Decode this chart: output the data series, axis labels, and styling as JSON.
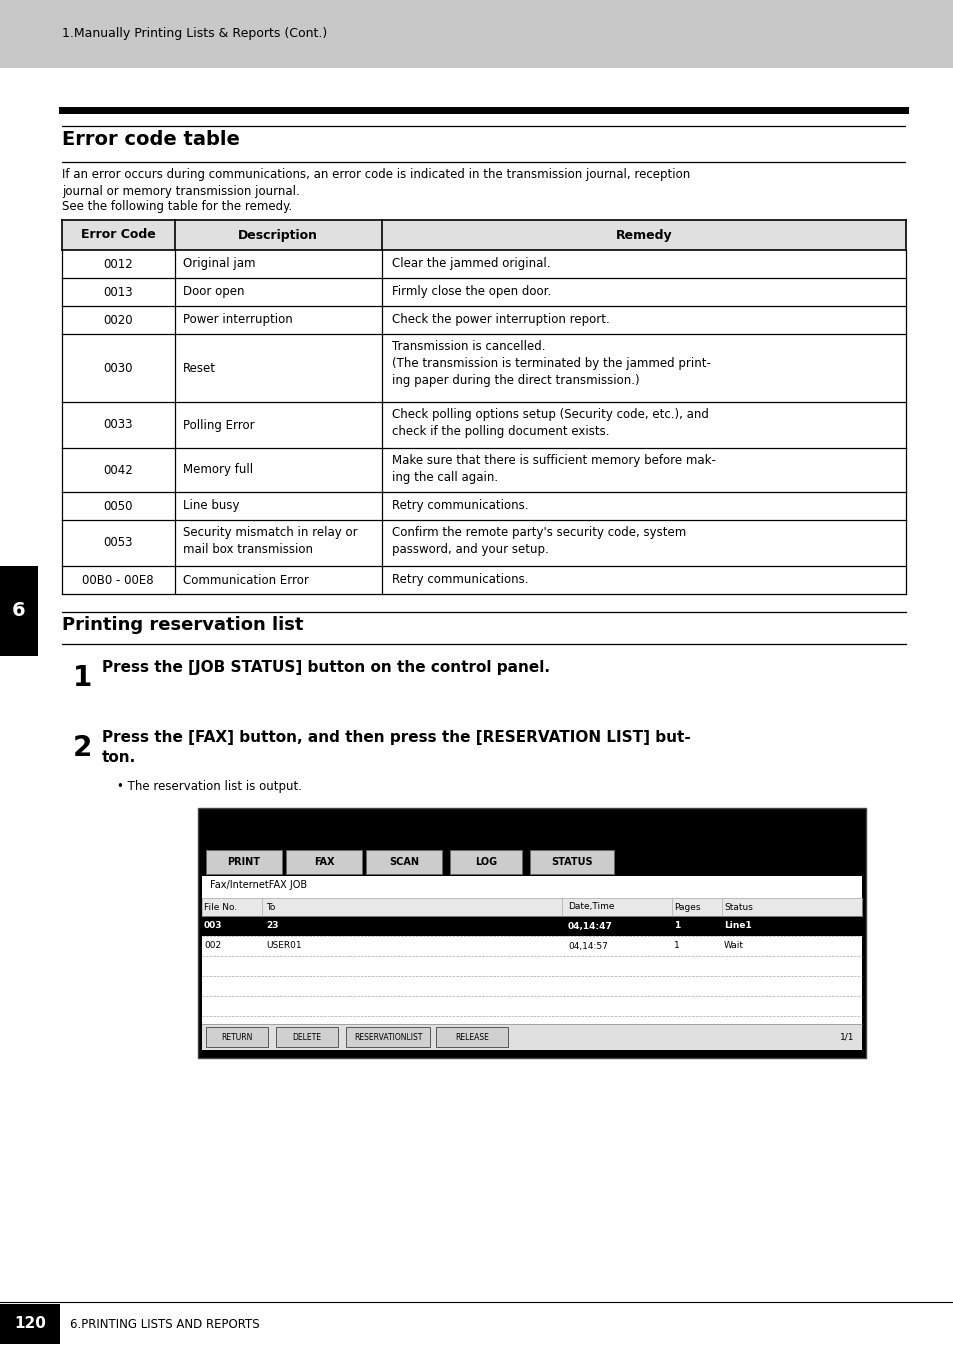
{
  "page_bg": "#ffffff",
  "header_bg": "#c8c8c8",
  "header_text": "1.Manually Printing Lists & Reports (Cont.)",
  "section_title": "Error code table",
  "intro_text1": "If an error occurs during communications, an error code is indicated in the transmission journal, reception",
  "intro_text2": "journal or memory transmission journal.",
  "intro_text3": "See the following table for the remedy.",
  "table_headers": [
    "Error Code",
    "Description",
    "Remedy"
  ],
  "table_rows": [
    [
      "0012",
      "Original jam",
      "Clear the jammed original."
    ],
    [
      "0013",
      "Door open",
      "Firmly close the open door."
    ],
    [
      "0020",
      "Power interruption",
      "Check the power interruption report."
    ],
    [
      "0030",
      "Reset",
      "Transmission is cancelled.\n(The transmission is terminated by the jammed print-\ning paper during the direct transmission.)"
    ],
    [
      "0033",
      "Polling Error",
      "Check polling options setup (Security code, etc.), and\ncheck if the polling document exists."
    ],
    [
      "0042",
      "Memory full",
      "Make sure that there is sufficient memory before mak-\ning the call again."
    ],
    [
      "0050",
      "Line busy",
      "Retry communications."
    ],
    [
      "0053",
      "Security mismatch in relay or\nmail box transmission",
      "Confirm the remote party's security code, system\npassword, and your setup."
    ],
    [
      "00B0 - 00E8",
      "Communication Error",
      "Retry communications."
    ]
  ],
  "section2_title": "Printing reservation list",
  "step1_num": "1",
  "step1_text": "Press the [JOB STATUS] button on the control panel.",
  "step2_num": "2",
  "step2_line1": "Press the [FAX] button, and then press the [RESERVATION LIST] but-",
  "step2_line2": "ton.",
  "step2_bullet": "The reservation list is output.",
  "footer_tab_text": "6",
  "footer_page_num": "120",
  "footer_text": "6.PRINTING LISTS AND REPORTS",
  "screen_tabs": [
    "PRINT",
    "FAX",
    "SCAN",
    "LOG",
    "STATUS"
  ],
  "screen_title": "Fax/InternetFAX JOB",
  "screen_col_headers": [
    "File No.",
    "To",
    "Date,Time",
    "Pages",
    "Status"
  ],
  "screen_row1": [
    "003",
    "23",
    "04,14:47",
    "1",
    "Line1"
  ],
  "screen_row2": [
    "002",
    "USER01",
    "04,14:57",
    "1",
    "Wait"
  ],
  "screen_buttons": [
    "RETURN",
    "DELETE",
    "RESERVATIONLIST",
    "RELEASE"
  ],
  "screen_page": "1/1"
}
